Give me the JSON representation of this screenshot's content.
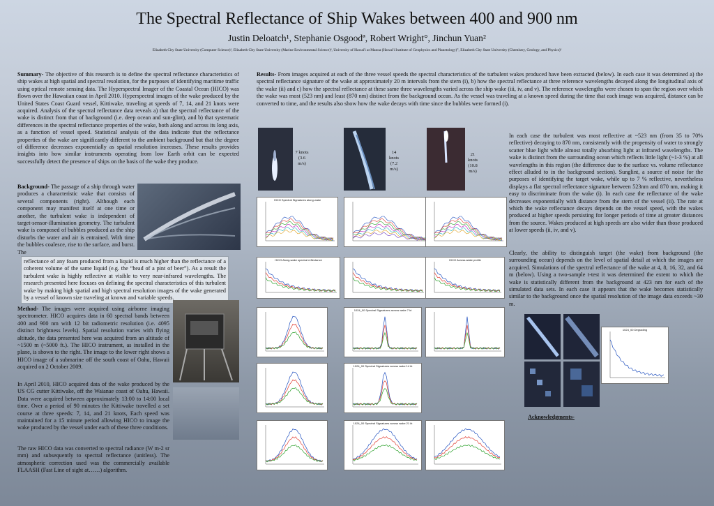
{
  "header": {
    "title": "The Spectral Reflectance of Ship Wakes between 400 and 900 nm",
    "authors": "Justin Deloatch¹, Stephanie Osgoodª, Robert Wright°, Jinchun Yuan²",
    "affiliations": "Elizabeth City State University (Computer Science)¹, Elizabeth City State University (Marine Environmental Science)ª, University of Hawai'i at Manoa (Hawai'i Institute of Geophysics and Planetology)°, Elizabeth City State University (Chemistry, Geology, and Physics)²"
  },
  "summary": {
    "heading": "Summary-",
    "text": "The objective of this research is to define the spectral reflectance characteristics of ship wakes at high spatial and spectral resolution, for the purposes of identifying maritime traffic using optical remote sensing data. The Hyperspectral Imager of the Coastal Ocean (HICO) was flown over the Hawaiian coast in April 2010. Hyperspectral images of the wake produced by the United States Coast Guard vessel, Kittiwake, traveling at speeds of 7, 14, and 21 knots were acquired. Analysis of the spectral reflectance data reveals a) that the spectral reflectance of the wake is distinct from that of background (i.e. deep ocean and sun-glint), and b) that systematic differences in the spectral reflectance properties of the wake, both along and across its long axis, as a function of vessel speed. Statistical analysis of the data indicate that the reflectance properties of the wake are significantly different to the ambient background but that the degree of difference decreases exponentially as spatial resolution increases. These results provides insights into how similar instruments operating from low Earth orbit can be expected successfully detect the presence of ships on the basis of the wake they produce."
  },
  "background": {
    "heading": "Background-",
    "text1": "The passage of a ship through water produces a characteristic wake that consists of several components (right). Although each component may manifest itself at one time or another, the turbulent wake is independent of target-sensor-illumination geometry. The turbulent wake is composed of bubbles produced as the ship disturbs the water and air is entrained. With time the bubbles coalesce, rise to the surface, and burst. The",
    "text2": "reflectance of any foam produced from a liquid is much higher than the reflectance of a coherent volume of the same liquid (e.g. the “head of a pint of beer”). As a result the turbulent wake is highly reflective at visible to very near-infrared wavelengths. The research presented here focuses on defining the spectral characteristics of this turbulent wake by making high spatial and high spectral resolution images of the wake generated by a vessel of known size traveling at known and variable speeds."
  },
  "method": {
    "heading": "Method-",
    "text": "The images were acquired using airborne imaging spectrometer. HICO acquires data in 60 spectral bands between 400 and 900 nm with 12 bit radiometric resolution (i.e. 4095 distinct brightness levels). Spatial resolution varies with flying altitude, the data presented here was acquired from an altitude of ~1500 m (~5000 ft.). The HICO instrument, as installed in the plane, is shown to the right. The image to the lower right shows a HICO image of a submarine off the south coast of Oahu, Hawaii acquired on 2 October 2009.",
    "text2": "In April 2010, HICO acquired data of the wake produced by the US CG cutter Kittiwake, off the Waianae coast of Oahu, Hawaii. Data were acquired between approximately 13:00 to 14:00 local time. Over a period of 90 minutes the Kittiwake travelled a set course at three speeds: 7, 14, and 21 knots, Each speed was maintained for a 15 minute period allowing HICO to image the wake produced by the vessel under each of these three conditions.",
    "text3": "The raw HICO data was converted to spectral radiance (W m-2 sr mm) and subsequently to spectral reflectance (unitless). The atmospheric correction used was the commercially available FLAASH (Fast Line of sight at……) algorithm."
  },
  "results": {
    "heading": "Results-",
    "text": "From images acquired at each of the three vessel speeds the spectral characteristics of the turbulent wakes produced have been extracted (below). In each case it was determined a) the spectral reflectance signature of the wake at approximately 20 m intervals from the stern (i), b) how the spectral reflectance at three reference wavelengths decayed along the longitudinal axis of the wake (ii) and c) how the spectral reflectance at these same three wavelengths varied across the ship wake (iii, iv, and v). The reference wavelengths were chosen to span the region over which the wake was most (523 nm) and least (870 nm) distinct from the background ocean. As the vessel was traveling at a known speed during the time that each image was acquired, distance can be converted to time, and the results also show how the wake decays with time since the bubbles were formed (i)."
  },
  "speeds": [
    {
      "lines": [
        "7 knots",
        "(3.6",
        "m/s)"
      ]
    },
    {
      "lines": [
        "14",
        "knots",
        "(7.2",
        "m/s)"
      ]
    },
    {
      "lines": [
        "21",
        "knots",
        "(10.8",
        "m/s)"
      ]
    }
  ],
  "right_text": {
    "p1": "In each case the turbulent was most reflective at ~523 nm (from 35 to 70% reflective) decaying to 870 nm, consistently with the propensity of water to strongly scatter blue light while almost totally absorbing light at infrared wavelengths. The wake is distinct from the surrounding ocean which reflects little light (~1-3 %) at all wavelengths in this region (the difference due to the surface vs. volume reflectance effect alluded to in the background section). Sunglint, a source of noise for the purposes of identifying the target wake, while up to 7 % reflective, nevertheless displays a flat spectral reflectance signature between 523nm and 870 nm, making it easy to discriminate from the wake (i). In each case the reflectance of the wake decreases exponentially with distance from the stern of the vessel (ii). The rate at which the wake reflectance decays depends on the vessel speed, with the wakes produced at higher speeds persisting for longer periods of time at greater distances from the source. Wakes produced at high speeds are also wider than those produced at lower speeds (ii, iv, and v).",
    "p2": "Clearly, the ability to distinguish target (the wake) from background (the surrounding ocean) depends on the level of spatial detail at which the images are acquired. Simulations of the spectral reflectance of the wake at 4, 8, 16, 32, and 64 m (below). Using a two-sample t-test it was determined the extent to which the wake is statistically different from the background at 423 nm for each of the simulated data sets. In each case it appears that the wake becomes statistically similar to the background once the spatial resolution of the image data exceeds ~30 m.",
    "ack": "Acknowledgments-"
  },
  "plots": {
    "p1": "HICO Spectral Signatures along wake",
    "p2": "HICO Along-wake spectral reflectance",
    "p3": "HICO Across-wake profile",
    "p4": "1024_00 Spectral Signatures across wake 7 kt",
    "p5": "1024_00 Spectral Signatures across wake 14 kt",
    "p6": "1024_00 Spectral Signatures across wake 21 kt",
    "p7": "1024_00 Degrading"
  },
  "colors": {
    "bg_top": "#cdd6e3",
    "bg_bottom": "#7d8898",
    "series": [
      "#1f4fbf",
      "#e03a2f",
      "#2aa02a",
      "#c020c0",
      "#20b0c0",
      "#e0a020",
      "#7040c0"
    ]
  }
}
